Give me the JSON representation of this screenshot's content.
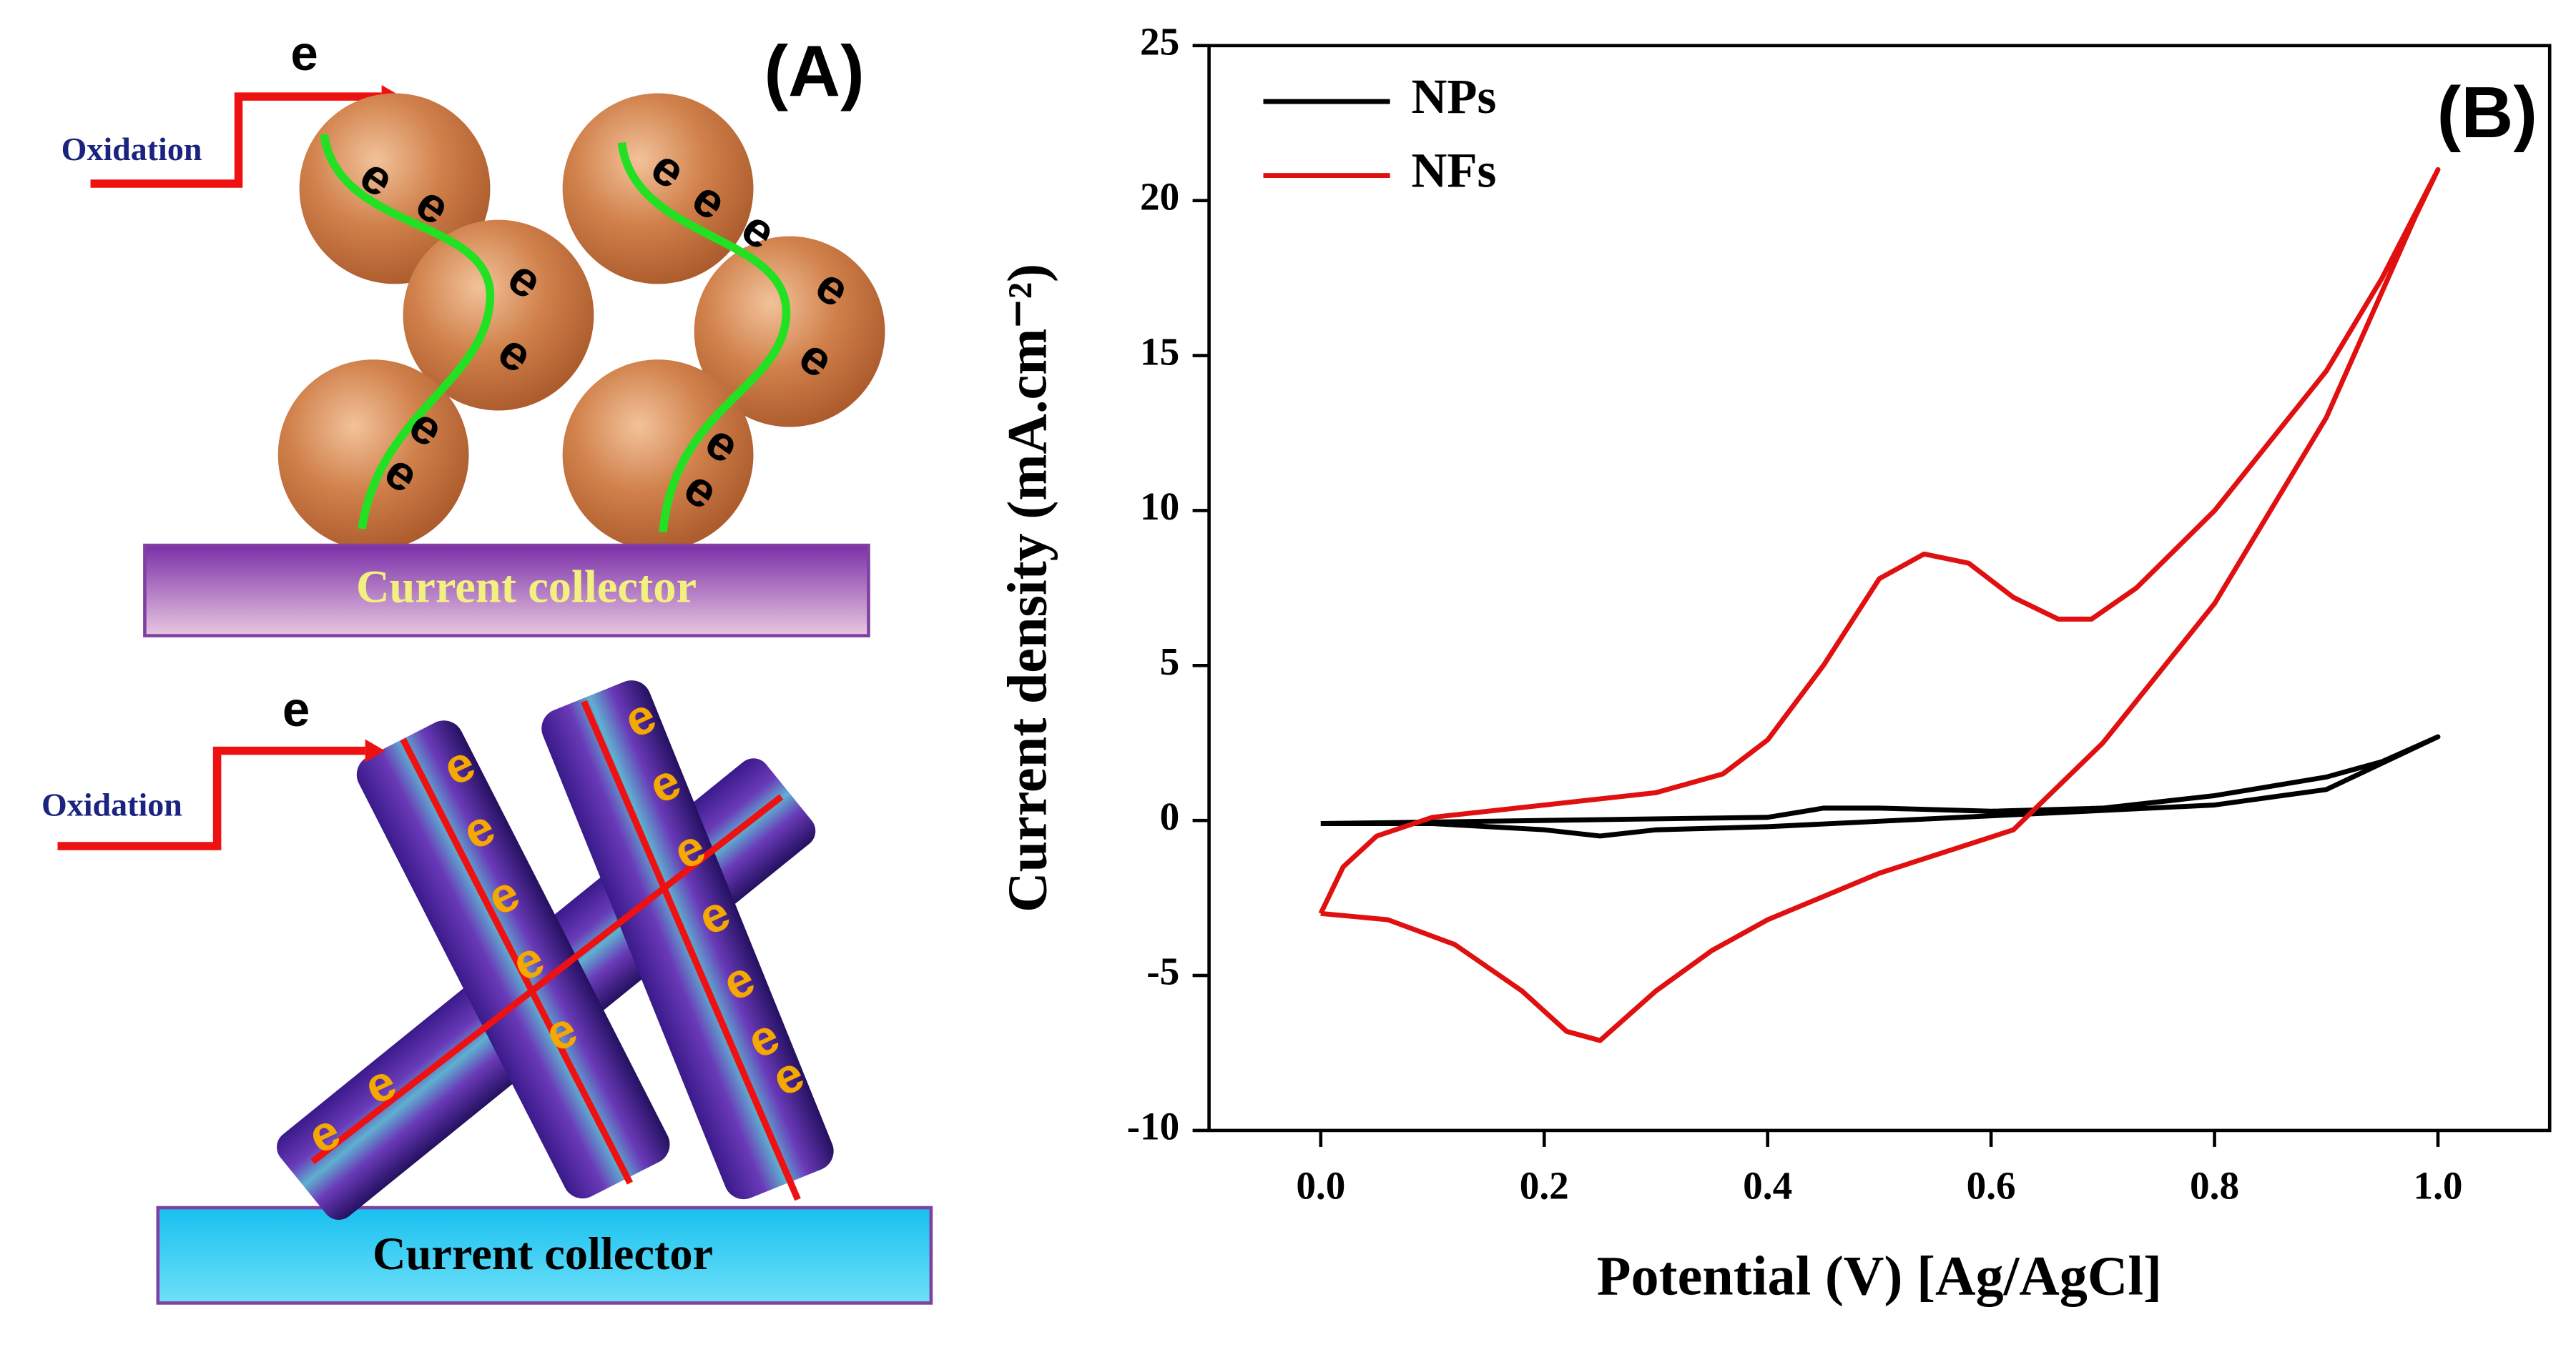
{
  "panel_a": {
    "label": "(A)",
    "top": {
      "electron_in": "e",
      "oxidation": "Oxidation",
      "collector": "Current collector",
      "electrons": [
        "e",
        "e",
        "e",
        "e",
        "e",
        "e",
        "e",
        "e",
        "e",
        "e",
        "e",
        "e",
        "e"
      ]
    },
    "bottom": {
      "electron_in": "e",
      "oxidation": "Oxidation",
      "collector": "Current collector",
      "electrons": [
        "e",
        "e",
        "e",
        "e",
        "e",
        "e",
        "e",
        "e",
        "e",
        "e",
        "e",
        "e",
        "e",
        "e"
      ]
    }
  },
  "chart_data": {
    "type": "line",
    "panel_label": "(B)",
    "xlabel": "Potential (V) [Ag/AgCl]",
    "ylabel": "Current density (mA.cm⁻²)",
    "xlim": [
      -0.1,
      1.1
    ],
    "ylim": [
      -10,
      25
    ],
    "xticks": [
      {
        "value": 0,
        "label": "0.0"
      },
      0.2,
      0.4,
      0.6,
      0.8,
      {
        "value": 1,
        "label": "1.0"
      }
    ],
    "yticks": [
      -10,
      -5,
      0,
      5,
      10,
      15,
      20,
      25
    ],
    "legend": "top-left",
    "series": [
      {
        "name": "NPs",
        "color": "#000000",
        "x": [
          0,
          0.2,
          0.4,
          0.45,
          0.5,
          0.6,
          0.7,
          0.8,
          0.9,
          0.95,
          1.0,
          0.9,
          0.8,
          0.6,
          0.4,
          0.3,
          0.25,
          0.2,
          0.1,
          0
        ],
        "values": [
          -0.1,
          0,
          0.1,
          0.4,
          0.4,
          0.3,
          0.4,
          0.8,
          1.4,
          1.9,
          2.7,
          1.0,
          0.5,
          0.15,
          -0.2,
          -0.3,
          -0.5,
          -0.3,
          -0.1,
          -0.1
        ]
      },
      {
        "name": "NFs",
        "color": "#e01010",
        "x": [
          0,
          0.02,
          0.05,
          0.1,
          0.2,
          0.3,
          0.36,
          0.4,
          0.45,
          0.5,
          0.54,
          0.58,
          0.62,
          0.66,
          0.69,
          0.73,
          0.8,
          0.9,
          0.95,
          1.0,
          0.98,
          0.9,
          0.8,
          0.7,
          0.62,
          0.5,
          0.4,
          0.35,
          0.3,
          0.25,
          0.22,
          0.18,
          0.12,
          0.06,
          0
        ],
        "values": [
          -3,
          -1.5,
          -0.5,
          0.1,
          0.5,
          0.9,
          1.5,
          2.6,
          5,
          7.8,
          8.6,
          8.3,
          7.2,
          6.5,
          6.5,
          7.5,
          10,
          14.5,
          17.5,
          21,
          19.5,
          13,
          7,
          2.5,
          -0.3,
          -1.7,
          -3.2,
          -4.2,
          -5.5,
          -7.1,
          -6.8,
          -5.5,
          -4,
          -3.2,
          -3
        ]
      }
    ]
  }
}
